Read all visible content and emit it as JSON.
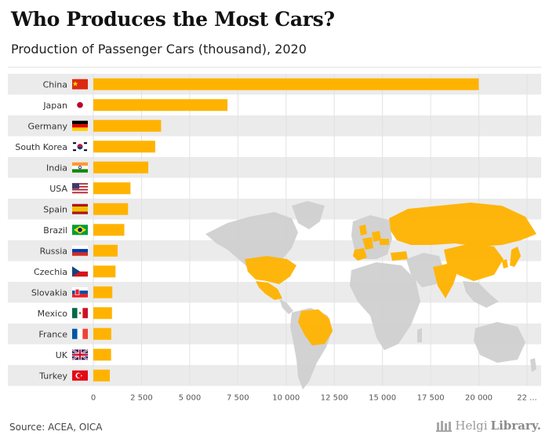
{
  "header": {
    "title": "Who Produces the Most Cars?",
    "subtitle": "Production of Passenger Cars (thousand), 2020"
  },
  "footer": {
    "source": "Source: ACEA, OICA",
    "logo_text_a": "Helgi",
    "logo_text_b": "Library."
  },
  "colors": {
    "bar": "#FFB300",
    "map_highlight": "#FFB300",
    "map_base": "#D0D0D0",
    "band": "#EBEBEB"
  },
  "chart_data": {
    "type": "bar",
    "orientation": "horizontal",
    "categories": [
      "China",
      "Japan",
      "Germany",
      "South Korea",
      "India",
      "USA",
      "Spain",
      "Brazil",
      "Russia",
      "Czechia",
      "Slovakia",
      "Mexico",
      "France",
      "UK",
      "Turkey"
    ],
    "flags": [
      "flag-china",
      "flag-japan",
      "flag-germany",
      "flag-south-korea",
      "flag-india",
      "flag-usa",
      "flag-spain",
      "flag-brazil",
      "flag-russia",
      "flag-czechia",
      "flag-slovakia",
      "flag-mexico",
      "flag-france",
      "flag-uk",
      "flag-turkey"
    ],
    "values": [
      19994,
      6960,
      3515,
      3212,
      2852,
      1927,
      1801,
      1608,
      1260,
      1153,
      985,
      968,
      928,
      921,
      855
    ],
    "xlim": [
      0,
      22500
    ],
    "xticks": [
      "0",
      "2 500",
      "5 000",
      "7 500",
      "10 000",
      "12 500",
      "15 000",
      "17 500",
      "20 000",
      "22 ..."
    ],
    "grid": true,
    "legend": "none"
  }
}
